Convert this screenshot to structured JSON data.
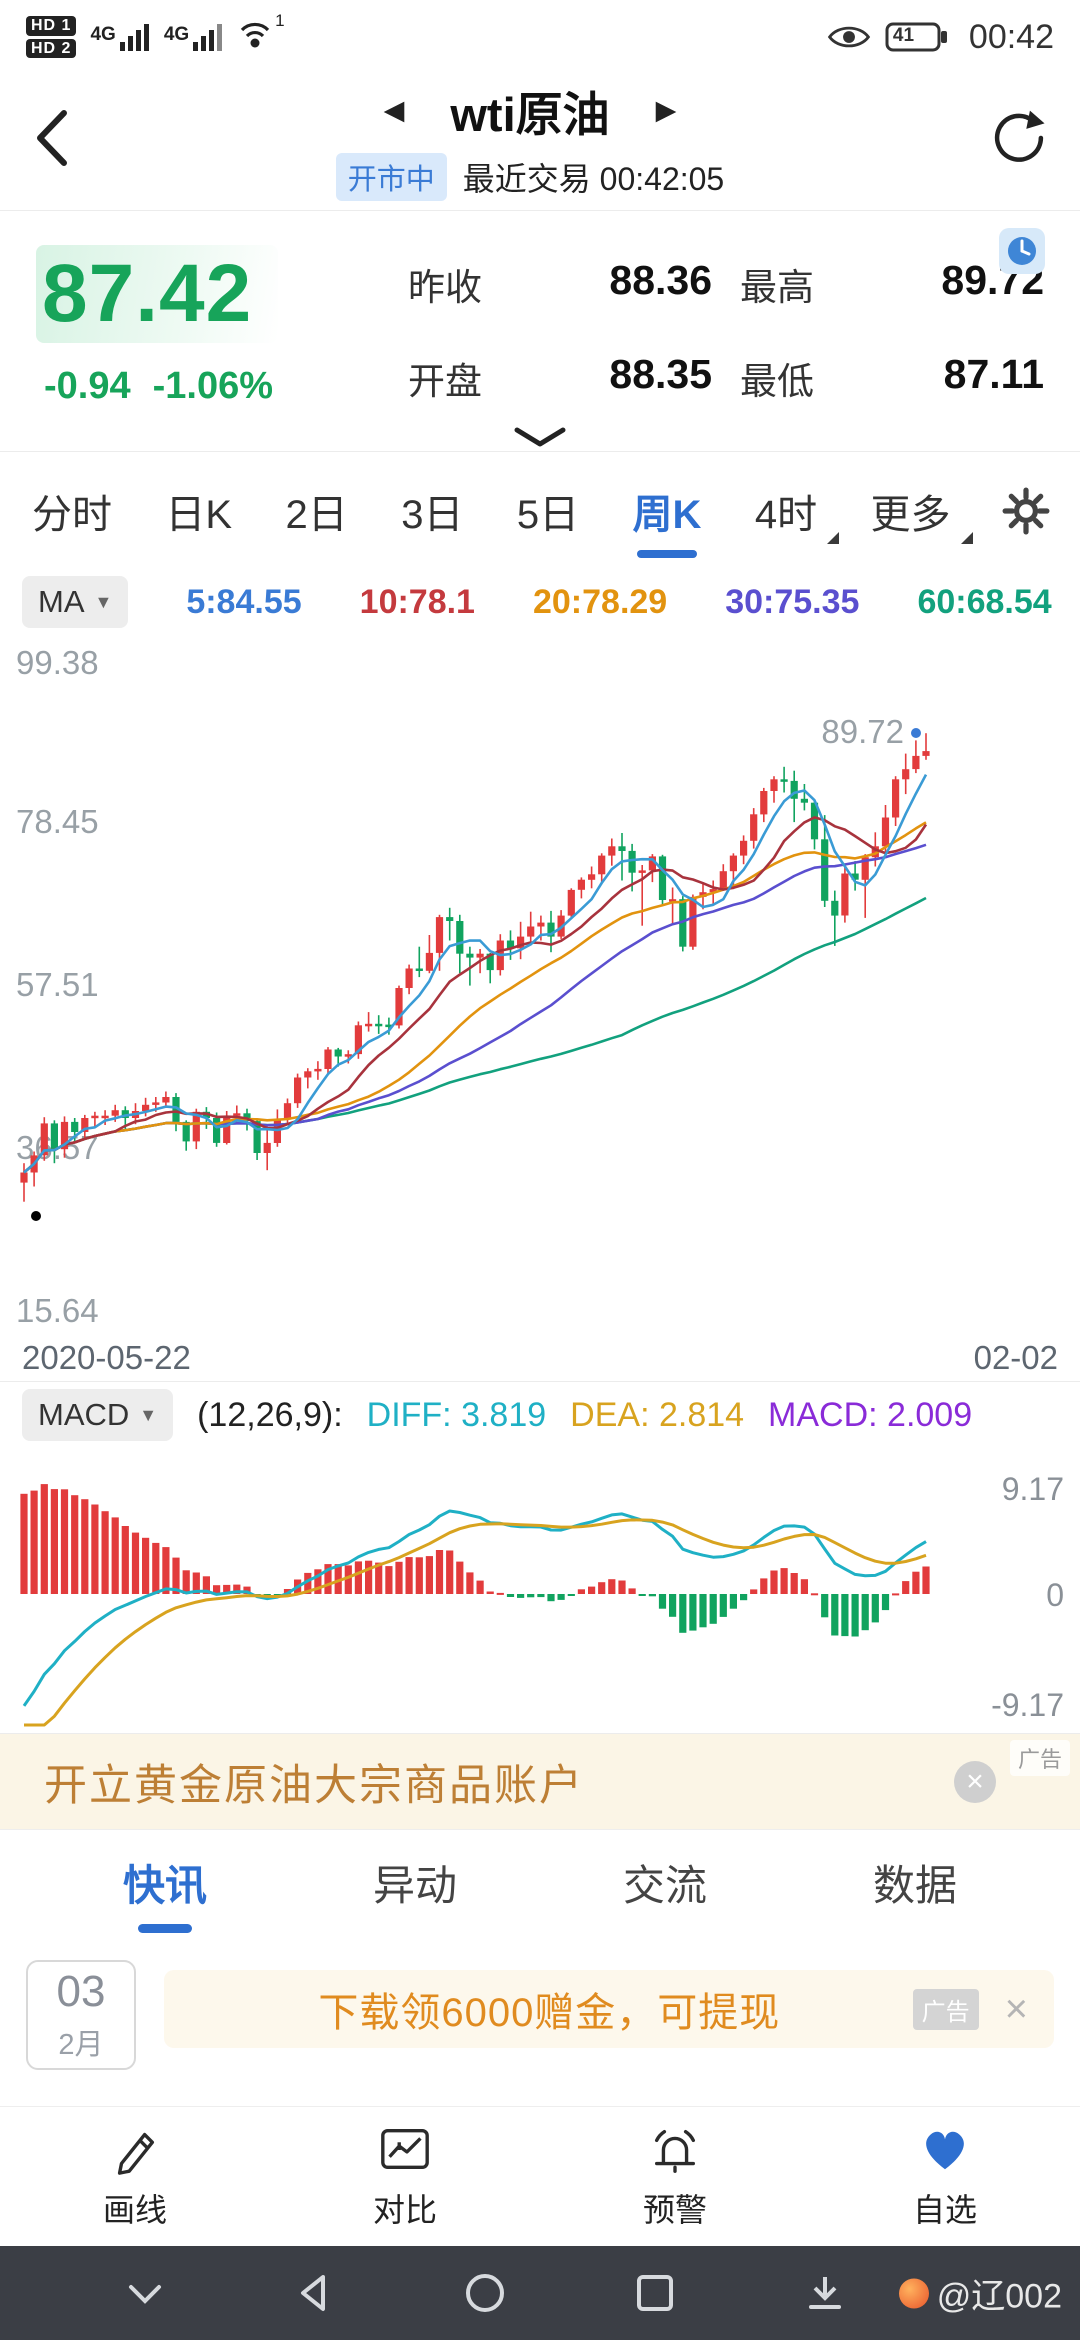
{
  "status_bar": {
    "hd1": "HD 1",
    "hd2": "HD 2",
    "network1": "4G",
    "network2": "4G",
    "hotspot_badge": "1",
    "battery": "41",
    "time": "00:42"
  },
  "header": {
    "title": "wti原油",
    "market_status": "开市中",
    "last_trade": "最近交易 00:42:05"
  },
  "quote": {
    "price": "87.42",
    "change": "-0.94",
    "change_pct": "-1.06%",
    "fields": [
      {
        "label": "昨收",
        "value": "88.36"
      },
      {
        "label": "最高",
        "value": "89.72"
      },
      {
        "label": "开盘",
        "value": "88.35"
      },
      {
        "label": "最低",
        "value": "87.11"
      }
    ]
  },
  "period_tabs": {
    "items": [
      "分时",
      "日K",
      "2日",
      "3日",
      "5日",
      "周K",
      "4时",
      "更多"
    ],
    "active": "周K"
  },
  "ma_bar": {
    "label": "MA",
    "items": [
      {
        "text": "5:84.55",
        "color": "#3a7bd5"
      },
      {
        "text": "10:78.1",
        "color": "#c43a3e"
      },
      {
        "text": "20:78.29",
        "color": "#e2930f"
      },
      {
        "text": "30:75.35",
        "color": "#5a4fcf"
      },
      {
        "text": "60:68.54",
        "color": "#12a17e"
      }
    ]
  },
  "macd_bar": {
    "label": "MACD",
    "items": [
      {
        "text": "(12,26,9):",
        "color": "#222222"
      },
      {
        "text": "DIFF: 3.819",
        "color": "#1fb0c5"
      },
      {
        "text": "DEA: 2.814",
        "color": "#d8a31f"
      },
      {
        "text": "MACD: 2.009",
        "color": "#8a2bd8"
      }
    ]
  },
  "chart_data": [
    {
      "type": "candlestick",
      "title": "wti原油 周K",
      "x_start_label": "2020-05-22",
      "x_end_label": "02-02",
      "ylim": [
        15.64,
        99.38
      ],
      "y_ticks": [
        "99.38",
        "78.45",
        "57.51",
        "36.57",
        "15.64"
      ],
      "high_marker": "89.72",
      "low_marker": "29.55",
      "marker_dot_color": "#3a7bd5",
      "colors": {
        "up": "#e23b3c",
        "down": "#10a35f"
      },
      "ma": [
        {
          "period": 60,
          "color": "#12a17e"
        },
        {
          "period": 30,
          "color": "#5a4fcf"
        },
        {
          "period": 20,
          "color": "#e2930f"
        },
        {
          "period": 10,
          "color": "#a8333d"
        },
        {
          "period": 5,
          "color": "#3a9bd5"
        }
      ],
      "candles": [
        [
          32.0,
          34.5,
          29.55,
          33.3
        ],
        [
          33.3,
          36.0,
          31.5,
          35.5
        ],
        [
          35.5,
          40.4,
          34.8,
          39.6
        ],
        [
          39.6,
          40.0,
          34.5,
          36.3
        ],
        [
          36.3,
          40.5,
          35.2,
          39.8
        ],
        [
          39.8,
          40.3,
          37.1,
          38.5
        ],
        [
          38.5,
          40.7,
          37.6,
          40.3
        ],
        [
          40.3,
          41.1,
          39.2,
          40.6
        ],
        [
          40.6,
          41.3,
          39.4,
          40.6
        ],
        [
          40.6,
          42.0,
          39.8,
          41.3
        ],
        [
          41.3,
          41.8,
          38.8,
          40.3
        ],
        [
          40.3,
          42.2,
          39.5,
          41.2
        ],
        [
          41.2,
          42.9,
          40.5,
          42.0
        ],
        [
          42.0,
          43.0,
          41.1,
          42.3
        ],
        [
          42.3,
          43.7,
          41.6,
          43.0
        ],
        [
          43.0,
          43.5,
          38.6,
          39.8
        ],
        [
          39.8,
          40.0,
          36.1,
          37.3
        ],
        [
          37.3,
          41.5,
          36.3,
          41.1
        ],
        [
          41.1,
          41.7,
          38.9,
          40.3
        ],
        [
          40.3,
          41.0,
          36.6,
          37.1
        ],
        [
          37.1,
          41.2,
          36.9,
          40.6
        ],
        [
          40.6,
          41.9,
          39.6,
          40.9
        ],
        [
          40.9,
          41.5,
          38.7,
          39.9
        ],
        [
          39.9,
          40.2,
          34.9,
          35.8
        ],
        [
          35.8,
          39.2,
          33.6,
          37.1
        ],
        [
          37.1,
          41.4,
          36.6,
          40.1
        ],
        [
          40.1,
          42.8,
          39.6,
          42.2
        ],
        [
          42.2,
          46.0,
          41.6,
          45.5
        ],
        [
          45.5,
          46.7,
          44.1,
          46.3
        ],
        [
          46.3,
          47.6,
          45.2,
          46.6
        ],
        [
          46.6,
          49.4,
          46.0,
          49.1
        ],
        [
          49.1,
          49.3,
          46.9,
          48.2
        ],
        [
          48.2,
          49.0,
          47.3,
          48.5
        ],
        [
          48.5,
          52.7,
          47.9,
          52.2
        ],
        [
          52.2,
          53.9,
          51.4,
          52.4
        ],
        [
          52.4,
          53.5,
          51.1,
          52.3
        ],
        [
          52.3,
          53.2,
          51.0,
          52.2
        ],
        [
          52.2,
          57.3,
          51.8,
          57.0
        ],
        [
          57.0,
          60.0,
          56.2,
          59.5
        ],
        [
          59.5,
          62.3,
          58.4,
          59.2
        ],
        [
          59.2,
          63.8,
          58.9,
          61.5
        ],
        [
          61.5,
          66.4,
          59.2,
          66.1
        ],
        [
          66.1,
          67.3,
          63.1,
          65.6
        ],
        [
          65.6,
          66.4,
          58.9,
          61.4
        ],
        [
          61.4,
          62.3,
          57.3,
          60.9
        ],
        [
          60.9,
          62.0,
          58.9,
          61.4
        ],
        [
          61.4,
          61.5,
          57.6,
          59.3
        ],
        [
          59.3,
          63.9,
          58.6,
          63.1
        ],
        [
          63.1,
          64.4,
          60.6,
          62.1
        ],
        [
          62.1,
          65.5,
          60.7,
          63.6
        ],
        [
          63.6,
          66.8,
          63.0,
          64.9
        ],
        [
          64.9,
          66.3,
          63.1,
          65.4
        ],
        [
          65.4,
          66.9,
          61.6,
          63.6
        ],
        [
          63.6,
          67.0,
          63.3,
          66.3
        ],
        [
          66.3,
          69.8,
          66.1,
          69.6
        ],
        [
          69.6,
          71.2,
          68.5,
          70.9
        ],
        [
          70.9,
          72.6,
          69.8,
          71.6
        ],
        [
          71.6,
          74.3,
          70.6,
          74.0
        ],
        [
          74.0,
          76.2,
          72.7,
          75.2
        ],
        [
          75.2,
          76.9,
          70.8,
          74.6
        ],
        [
          74.6,
          75.5,
          69.4,
          71.8
        ],
        [
          71.8,
          72.8,
          65.0,
          72.1
        ],
        [
          72.1,
          74.2,
          70.6,
          73.9
        ],
        [
          73.9,
          74.1,
          67.6,
          68.3
        ],
        [
          68.3,
          69.9,
          65.2,
          68.4
        ],
        [
          68.4,
          68.8,
          61.7,
          62.3
        ],
        [
          62.3,
          69.0,
          61.9,
          68.7
        ],
        [
          68.7,
          70.6,
          67.1,
          69.3
        ],
        [
          69.3,
          70.8,
          67.6,
          69.7
        ],
        [
          69.7,
          72.9,
          69.5,
          72.0
        ],
        [
          72.0,
          74.3,
          69.7,
          74.0
        ],
        [
          74.0,
          76.6,
          72.9,
          75.9
        ],
        [
          75.9,
          80.1,
          74.9,
          79.3
        ],
        [
          79.3,
          82.7,
          78.3,
          82.3
        ],
        [
          82.3,
          84.2,
          80.8,
          83.8
        ],
        [
          83.8,
          85.4,
          82.1,
          83.6
        ],
        [
          83.6,
          84.9,
          78.3,
          81.3
        ],
        [
          81.3,
          83.2,
          79.8,
          80.8
        ],
        [
          80.8,
          81.0,
          74.8,
          76.1
        ],
        [
          76.1,
          79.2,
          67.4,
          68.2
        ],
        [
          68.2,
          69.5,
          62.4,
          66.3
        ],
        [
          66.3,
          73.0,
          65.4,
          71.7
        ],
        [
          71.7,
          73.3,
          69.5,
          70.9
        ],
        [
          70.9,
          74.2,
          66.0,
          73.8
        ],
        [
          73.8,
          77.0,
          72.6,
          75.2
        ],
        [
          75.2,
          80.5,
          74.3,
          78.9
        ],
        [
          78.9,
          84.2,
          77.8,
          83.8
        ],
        [
          83.8,
          87.1,
          81.9,
          85.1
        ],
        [
          85.1,
          88.8,
          84.6,
          86.8
        ],
        [
          86.8,
          89.72,
          86.3,
          87.42
        ]
      ]
    },
    {
      "type": "macd",
      "params": "(12,26,9)",
      "diff": 3.819,
      "dea": 2.814,
      "macd": 2.009,
      "ylim": [
        -9.17,
        9.17
      ],
      "y_ticks": [
        "9.17",
        "0",
        "-9.17"
      ],
      "colors": {
        "diff": "#1fb0c5",
        "dea": "#d8a31f",
        "positive": "#e23b3c",
        "negative": "#10a35f"
      }
    }
  ],
  "xaxis": {
    "start": "2020-05-22",
    "end": "02-02"
  },
  "ad1": {
    "text": "开立黄金原油大宗商品账户",
    "tag": "广告",
    "close": "×"
  },
  "content_tabs": {
    "items": [
      "快讯",
      "异动",
      "交流",
      "数据"
    ],
    "active": "快讯"
  },
  "feed": {
    "date_day": "03",
    "date_month": "2月",
    "ad_text": "下载领6000赠金，可提现",
    "ad_tag": "广告",
    "ad_close": "×"
  },
  "bottom_nav": {
    "items": [
      {
        "label": "画线"
      },
      {
        "label": "对比"
      },
      {
        "label": "预警"
      },
      {
        "label": "自选"
      }
    ]
  },
  "android_nav": {
    "watermark": "@辽002"
  },
  "accent_color": "#2e6fd0",
  "price_color": "#17a45a"
}
